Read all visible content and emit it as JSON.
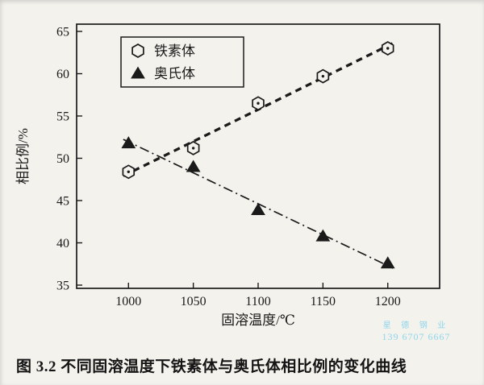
{
  "figure": {
    "caption": "图 3.2  不同固溶温度下铁素体与奥氏体相比例的变化曲线"
  },
  "watermark": {
    "line1": "星 德 钢 业",
    "line2": "139 6707 6667",
    "color": "#8ed6ec"
  },
  "chart_data": {
    "type": "scatter",
    "title": "",
    "xlabel": "固溶温度/℃",
    "ylabel": "相比例/%",
    "xlim": [
      960,
      1240
    ],
    "ylim": [
      35,
      65
    ],
    "x_ticks": [
      1000,
      1050,
      1100,
      1150,
      1200
    ],
    "y_ticks": [
      35,
      40,
      45,
      50,
      55,
      60,
      65
    ],
    "grid": false,
    "legend_position": "top-left",
    "ink_color": "#1a1a1a",
    "paper_color": "#f4f2ed",
    "x": [
      1000,
      1050,
      1100,
      1150,
      1200
    ],
    "series": [
      {
        "name": "铁素体",
        "marker": "hexagon-open",
        "line_style": "bold-dashed",
        "values": [
          48.4,
          51.2,
          56.5,
          59.7,
          63.0
        ]
      },
      {
        "name": "奥氏体",
        "marker": "triangle-filled",
        "line_style": "dash-dot",
        "values": [
          51.8,
          49.0,
          43.9,
          40.8,
          37.6
        ]
      }
    ]
  }
}
